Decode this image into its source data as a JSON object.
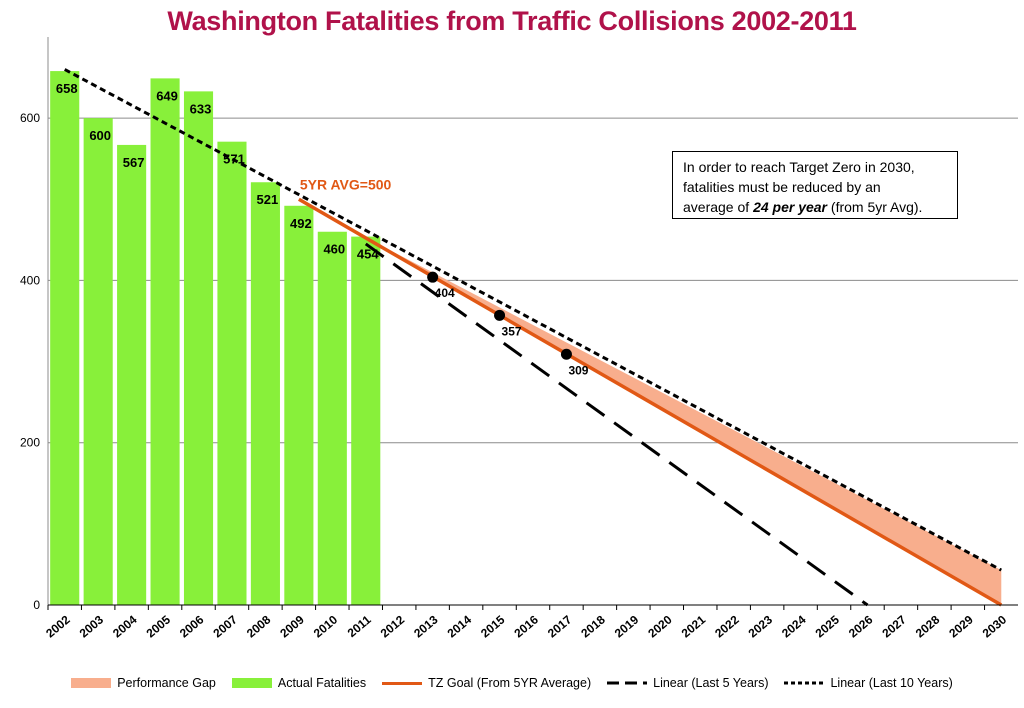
{
  "chart_data": {
    "type": "bar",
    "title": "Washington Fatalities from Traffic Collisions 2002-2011",
    "categories": [
      "2002",
      "2003",
      "2004",
      "2005",
      "2006",
      "2007",
      "2008",
      "2009",
      "2010",
      "2011",
      "2012",
      "2013",
      "2014",
      "2015",
      "2016",
      "2017",
      "2018",
      "2019",
      "2020",
      "2021",
      "2022",
      "2023",
      "2024",
      "2025",
      "2026",
      "2027",
      "2028",
      "2029",
      "2030"
    ],
    "ylim": [
      0,
      700
    ],
    "yticks": [
      0,
      200,
      400,
      600
    ],
    "grid": true,
    "legend_position": "bottom",
    "series": [
      {
        "name": "Actual Fatalities",
        "type": "bar",
        "color": "#88f03a",
        "x": [
          "2002",
          "2003",
          "2004",
          "2005",
          "2006",
          "2007",
          "2008",
          "2009",
          "2010",
          "2011"
        ],
        "values": [
          658,
          600,
          567,
          649,
          633,
          571,
          521,
          492,
          460,
          454
        ]
      },
      {
        "name": "TZ Goal (From 5YR Average)",
        "type": "line",
        "color": "#e15815",
        "x": [
          "2009",
          "2030"
        ],
        "values": [
          500,
          0
        ]
      },
      {
        "name": "Linear (Last 5 Years)",
        "type": "line",
        "dash": "long",
        "color": "#000000",
        "x": [
          "2011",
          "2026"
        ],
        "values": [
          445,
          0
        ]
      },
      {
        "name": "Linear (Last 10 Years)",
        "type": "line",
        "dash": "short",
        "color": "#000000",
        "x": [
          "2002",
          "2030"
        ],
        "values": [
          660,
          43
        ]
      },
      {
        "name": "Performance Gap",
        "type": "area",
        "color": "#f8ae8d",
        "x": [
          "2011",
          "2030"
        ],
        "lower": [
          453,
          0
        ],
        "upper": [
          453,
          43
        ]
      }
    ],
    "highlight_points": [
      {
        "x": "2013",
        "value": 404,
        "label": "404"
      },
      {
        "x": "2015",
        "value": 357,
        "label": "357"
      },
      {
        "x": "2017",
        "value": 309,
        "label": "309"
      }
    ],
    "annotations": {
      "avg_label": "5YR AVG=500",
      "note_line1": "In order to reach Target Zero in 2030,",
      "note_line2": "fatalities must be reduced by an",
      "note_line3_pre": "average of ",
      "note_line3_em": "24 per year",
      "note_line3_post": " (from 5yr Avg)."
    }
  },
  "colors": {
    "title": "#b0124a",
    "bars": "#88f03a",
    "goal": "#e15815",
    "gap": "#f8ae8d",
    "grid": "#8c8c8c"
  }
}
